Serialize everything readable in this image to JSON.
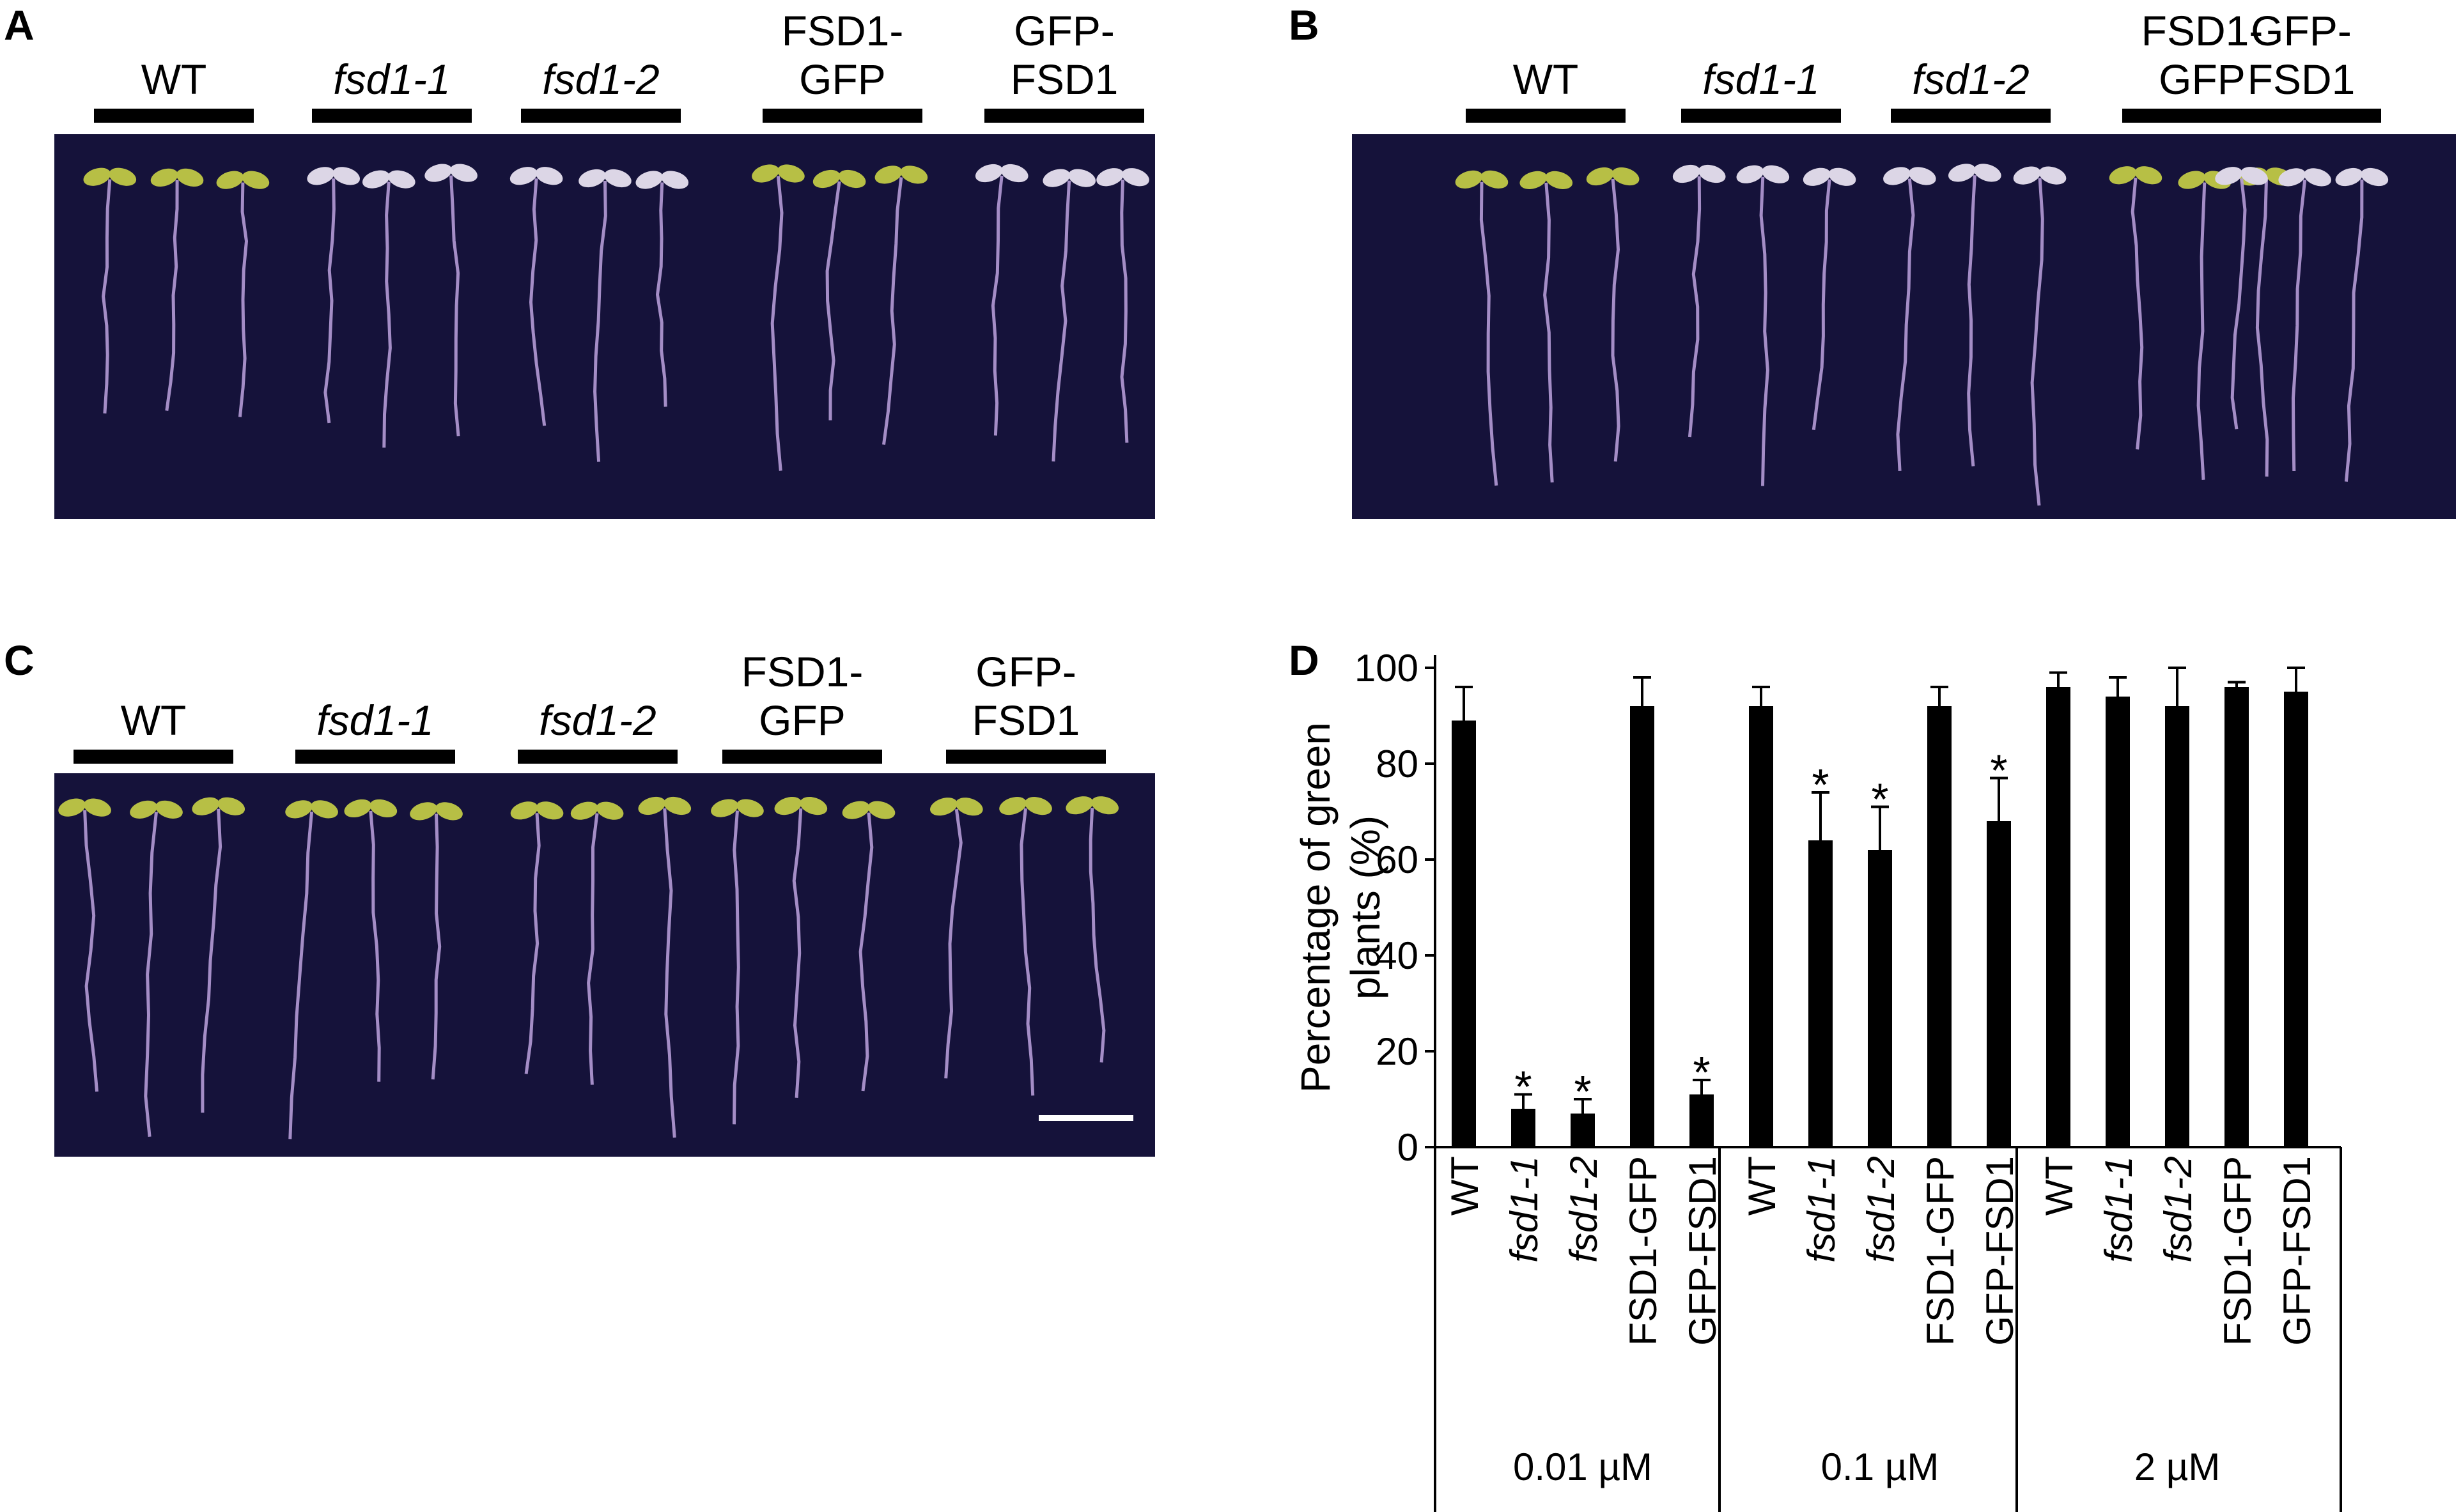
{
  "panels": {
    "A": {
      "letter": "A",
      "groups": [
        {
          "label": "WT",
          "italic": false
        },
        {
          "label": "fsd1-1",
          "italic": true
        },
        {
          "label": "fsd1-2",
          "italic": true
        },
        {
          "label": "FSD1-\nGFP",
          "italic": false
        },
        {
          "label": "GFP-\nFSD1",
          "italic": false
        }
      ]
    },
    "B": {
      "letter": "B",
      "groups": [
        {
          "label": "WT",
          "italic": false
        },
        {
          "label": "fsd1-1",
          "italic": true
        },
        {
          "label": "fsd1-2",
          "italic": true
        },
        {
          "label": "FSD1-\nGFP",
          "italic": false
        },
        {
          "label": "GFP-\nFSD1",
          "italic": false
        }
      ]
    },
    "C": {
      "letter": "C",
      "groups": [
        {
          "label": "WT",
          "italic": false
        },
        {
          "label": "fsd1-1",
          "italic": true
        },
        {
          "label": "fsd1-2",
          "italic": true
        },
        {
          "label": "FSD1-\nGFP",
          "italic": false
        },
        {
          "label": "GFP-\nFSD1",
          "italic": false
        }
      ]
    },
    "D": {
      "letter": "D"
    }
  },
  "colors": {
    "plate": "#15123a",
    "root": "#b49bd6",
    "cotyledon_green": "#b7bf45",
    "cotyledon_pale": "#dcd6e6",
    "bar": "#000000"
  },
  "chart_data": {
    "type": "bar",
    "title": "",
    "ylabel": "Percentage of green plants (%)",
    "ylim": [
      0,
      100
    ],
    "yticks": [
      0,
      20,
      40,
      60,
      80,
      100
    ],
    "categories": [
      "WT",
      "fsd1-1",
      "fsd1-2",
      "FSD1-GFP",
      "GFP-FSD1"
    ],
    "italic_categories": [
      "fsd1-1",
      "fsd1-2"
    ],
    "groups": [
      {
        "name": "0.01 µM",
        "values": [
          89,
          8,
          7,
          92,
          11
        ],
        "errors": [
          7,
          3,
          3,
          6,
          3
        ],
        "significant": [
          false,
          true,
          true,
          false,
          true
        ]
      },
      {
        "name": "0.1 µM",
        "values": [
          92,
          64,
          62,
          92,
          68
        ],
        "errors": [
          4,
          10,
          9,
          4,
          9
        ],
        "significant": [
          false,
          true,
          true,
          false,
          true
        ]
      },
      {
        "name": "2 µM",
        "values": [
          96,
          94,
          92,
          96,
          95
        ],
        "errors": [
          3,
          4,
          8,
          1,
          5
        ],
        "significant": [
          false,
          false,
          false,
          false,
          false
        ]
      }
    ],
    "significance_marker": "*",
    "grid": false,
    "legend": "none"
  }
}
